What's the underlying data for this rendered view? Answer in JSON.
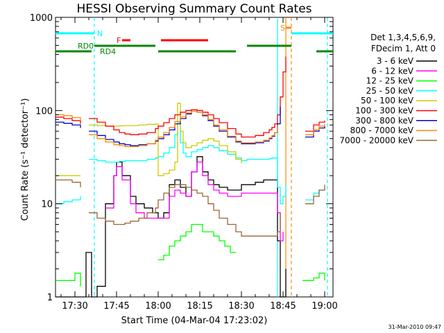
{
  "chart_data": {
    "type": "line",
    "title": "HESSI Observing Summary Count Rates",
    "xlabel": "Start Time (04-Mar-04 17:23:02)",
    "ylabel": "Count Rate (s⁻¹ detector⁻¹)",
    "x_unit": "minutes after 17:00 UT",
    "xlim": [
      23,
      123
    ],
    "ylim": [
      1,
      1000
    ],
    "yscale": "log",
    "x_ticks": [
      {
        "x": 30,
        "label": "17:30"
      },
      {
        "x": 45,
        "label": "17:45"
      },
      {
        "x": 60,
        "label": "18:00"
      },
      {
        "x": 75,
        "label": "18:15"
      },
      {
        "x": 90,
        "label": "18:30"
      },
      {
        "x": 105,
        "label": "18:45"
      },
      {
        "x": 120,
        "label": "19:00"
      }
    ],
    "y_ticks": [
      {
        "y": 1,
        "label": "1"
      },
      {
        "y": 10,
        "label": "10"
      },
      {
        "y": 100,
        "label": "100"
      },
      {
        "y": 1000,
        "label": "1000"
      }
    ],
    "legend": {
      "position": "right",
      "header": [
        "Det 1,3,4,5,6,9,",
        "FDecim 1, Att 0"
      ]
    },
    "series": [
      {
        "name": "3 - 6 keV",
        "color": "#000000",
        "x": [
          23,
          32,
          34,
          36,
          38,
          41,
          44,
          45,
          47,
          50,
          52,
          55,
          58,
          60,
          62,
          64,
          66,
          68,
          70,
          72,
          74,
          76,
          78,
          80,
          82,
          85,
          88,
          90,
          92,
          95,
          98,
          100,
          102,
          103,
          104,
          105,
          106
        ],
        "y": [
          1,
          1,
          3,
          1,
          1.3,
          10,
          20,
          28,
          20,
          12,
          10,
          9,
          8,
          7,
          8,
          16,
          18,
          15,
          12,
          22,
          32,
          22,
          18,
          16,
          15,
          14,
          14,
          16,
          16,
          17,
          18,
          18,
          18,
          4,
          1,
          1,
          2
        ]
      },
      {
        "name": "6 - 12 keV",
        "color": "#ff00ff",
        "x": [
          23,
          32,
          34,
          36,
          38,
          41,
          44,
          45,
          47,
          50,
          52,
          55,
          58,
          60,
          62,
          64,
          66,
          68,
          70,
          72,
          74,
          76,
          78,
          80,
          82,
          85,
          88,
          90,
          92,
          95,
          98,
          100,
          102,
          103,
          104,
          105
        ],
        "y": [
          null,
          null,
          null,
          null,
          null,
          9,
          20,
          25,
          18,
          10,
          8,
          7,
          7,
          7,
          7,
          12,
          14,
          13,
          12,
          22,
          28,
          20,
          16,
          14,
          13,
          12,
          12,
          13,
          13,
          13,
          13,
          13,
          13,
          8,
          4,
          5
        ]
      },
      {
        "name": "12 - 25 keV",
        "color": "#00ff00",
        "x": [
          23,
          30,
          32,
          33,
          35,
          38,
          40,
          42,
          45,
          48,
          50,
          53,
          55,
          58,
          60,
          62,
          64,
          66,
          68,
          70,
          72,
          74,
          76,
          78,
          80,
          82,
          84,
          86,
          88,
          90,
          92,
          95,
          98,
          100,
          102,
          103,
          104,
          105,
          106,
          108,
          110,
          112,
          116,
          118,
          120
        ],
        "y": [
          1.5,
          1.8,
          1.3,
          null,
          null,
          null,
          null,
          null,
          null,
          null,
          null,
          null,
          null,
          null,
          2.5,
          2.8,
          3.5,
          4,
          4.5,
          5,
          6,
          6,
          5,
          5,
          4.5,
          4,
          3.5,
          3,
          3,
          null,
          null,
          null,
          null,
          null,
          null,
          null,
          null,
          null,
          null,
          null,
          null,
          1.5,
          1.6,
          1.8,
          1.5
        ]
      },
      {
        "name": "25 - 50 keV",
        "color": "#00ffff",
        "x": [
          23,
          26,
          29,
          32,
          33,
          35,
          38,
          41,
          44,
          46,
          48,
          50,
          53,
          56,
          59,
          60,
          62,
          64,
          66,
          67,
          68,
          69,
          70,
          72,
          74,
          76,
          78,
          80,
          82,
          85,
          88,
          90,
          92,
          95,
          98,
          100,
          101,
          102,
          103,
          104,
          105,
          106,
          108,
          110,
          112,
          113,
          116,
          118,
          120
        ],
        "y": [
          10,
          10.5,
          11,
          12,
          null,
          30,
          29,
          28,
          28,
          28.5,
          29,
          29,
          29,
          30,
          31,
          32,
          35,
          40,
          55,
          75,
          45,
          35,
          32,
          36,
          38,
          40,
          42,
          40,
          37,
          34,
          31,
          29,
          30,
          30,
          30,
          30.5,
          31,
          31,
          15,
          10,
          12,
          16,
          null,
          null,
          null,
          11,
          13,
          14,
          15
        ]
      },
      {
        "name": "50 - 100 keV",
        "color": "#cccc00",
        "x": [
          23,
          26,
          29,
          32,
          33,
          35,
          38,
          41,
          44,
          46,
          48,
          50,
          53,
          56,
          59,
          60,
          62,
          64,
          66,
          67,
          68,
          69,
          70,
          72,
          74,
          76,
          78,
          80,
          82,
          85,
          88,
          90,
          92,
          95,
          98,
          100,
          101,
          102,
          103,
          104,
          105,
          106,
          108,
          110,
          112,
          113,
          116,
          118,
          120
        ],
        "y": [
          20,
          20,
          20,
          20,
          null,
          70,
          69,
          68,
          68,
          68.5,
          69,
          69,
          70,
          71,
          72,
          20,
          21,
          23,
          28,
          120,
          60,
          45,
          40,
          42,
          45,
          48,
          50,
          47,
          42,
          36,
          30,
          27,
          null,
          null,
          null,
          null,
          null,
          null,
          null,
          null,
          null,
          null,
          null,
          null,
          null,
          null,
          null,
          null,
          null
        ]
      },
      {
        "name": "100 - 300 keV",
        "color": "#ff0000",
        "x": [
          23,
          26,
          29,
          32,
          33,
          35,
          38,
          41,
          44,
          46,
          48,
          50,
          53,
          56,
          59,
          60,
          62,
          64,
          66,
          68,
          70,
          72,
          74,
          76,
          78,
          80,
          82,
          85,
          88,
          90,
          92,
          95,
          98,
          100,
          101,
          102,
          103,
          104,
          105,
          106,
          108,
          110,
          112,
          113,
          116,
          118,
          120
        ],
        "y": [
          85,
          82,
          78,
          72,
          null,
          82,
          75,
          68,
          62,
          58,
          56,
          55,
          56,
          58,
          64,
          68,
          74,
          82,
          90,
          96,
          100,
          102,
          100,
          96,
          90,
          82,
          74,
          64,
          56,
          52,
          52,
          54,
          58,
          62,
          66,
          72,
          90,
          140,
          260,
          380,
          null,
          null,
          null,
          60,
          70,
          75,
          78
        ]
      },
      {
        "name": "300 - 800 keV",
        "color": "#0000cc",
        "x": [
          23,
          26,
          29,
          32,
          33,
          35,
          38,
          41,
          44,
          46,
          48,
          50,
          53,
          56,
          59,
          60,
          62,
          64,
          66,
          68,
          70,
          72,
          74,
          76,
          78,
          80,
          82,
          85,
          88,
          90,
          92,
          95,
          98,
          100,
          101,
          102,
          103,
          104,
          105,
          106,
          108,
          110,
          112,
          113,
          116,
          118,
          120
        ],
        "y": [
          75,
          73,
          70,
          65,
          null,
          60,
          54,
          49,
          46,
          44,
          43,
          42,
          43,
          44,
          47,
          50,
          55,
          62,
          72,
          82,
          92,
          98,
          96,
          88,
          78,
          68,
          60,
          52,
          46,
          44,
          44,
          45,
          47,
          50,
          53,
          58,
          72,
          110,
          null,
          null,
          null,
          null,
          null,
          52,
          60,
          65,
          68
        ]
      },
      {
        "name": "800 - 7000 keV",
        "color": "#ff8800",
        "x": [
          23,
          26,
          29,
          32,
          33,
          35,
          38,
          41,
          44,
          46,
          48,
          50,
          53,
          56,
          59,
          60,
          62,
          64,
          66,
          68,
          70,
          72,
          74,
          76,
          78,
          80,
          82,
          85,
          88,
          90,
          92,
          95,
          98,
          100,
          101,
          102,
          103,
          104,
          105,
          106,
          108,
          110,
          112,
          113,
          116,
          118,
          120
        ],
        "y": [
          90,
          88,
          84,
          78,
          null,
          55,
          50,
          46,
          43,
          42,
          41,
          41,
          42,
          44,
          48,
          52,
          58,
          66,
          76,
          86,
          94,
          98,
          96,
          90,
          80,
          70,
          62,
          53,
          47,
          45,
          45,
          46,
          48,
          51,
          54,
          58,
          70,
          null,
          null,
          null,
          null,
          null,
          null,
          55,
          62,
          68,
          72
        ]
      },
      {
        "name": "7000 - 20000 keV",
        "color": "#996633",
        "x": [
          23,
          26,
          29,
          32,
          33,
          35,
          38,
          41,
          44,
          46,
          48,
          50,
          53,
          56,
          59,
          60,
          62,
          64,
          66,
          68,
          70,
          72,
          74,
          76,
          78,
          80,
          82,
          85,
          88,
          90,
          92,
          95,
          98,
          100,
          101,
          102,
          103,
          104,
          105,
          106,
          108,
          110,
          112,
          113,
          116,
          118,
          120
        ],
        "y": [
          18,
          18,
          17,
          15,
          null,
          8,
          7,
          6.5,
          6,
          6,
          6.2,
          6.5,
          7,
          8,
          9,
          11,
          13,
          15,
          16,
          16,
          15,
          14,
          13,
          12,
          10,
          8.5,
          7,
          6,
          5,
          4.5,
          4.5,
          4.5,
          4.5,
          4.5,
          4.5,
          4.5,
          5,
          8,
          null,
          null,
          null,
          null,
          null,
          10,
          12,
          14,
          16
        ]
      }
    ],
    "bars": [
      {
        "label": "N",
        "color": "#00ffff",
        "segments": [
          [
            23,
            37
          ]
        ],
        "label_x": 38
      },
      {
        "label": "F",
        "color": "#ff0000",
        "segments": [
          [
            47,
            50
          ]
        ],
        "label_x": 45
      },
      {
        "label": "",
        "color": "#ff0000",
        "segments": [
          [
            61,
            78
          ]
        ],
        "label_x": null
      },
      {
        "label": "RD0",
        "color": "#008800",
        "segments": [
          [
            37,
            59
          ],
          [
            92,
            108
          ]
        ],
        "label_x": 31
      },
      {
        "label": "RD4",
        "color": "#008800",
        "segments": [
          [
            23,
            36
          ],
          [
            60,
            88
          ],
          [
            117,
            123
          ]
        ],
        "label_x": 39
      },
      {
        "label": "S",
        "color": "#ff8800",
        "segments": [
          [
            106,
            108
          ]
        ],
        "label_x": 104
      },
      {
        "label": "",
        "color": "#00ffff",
        "segments": [
          [
            108,
            123
          ]
        ],
        "label_x": null
      }
    ],
    "vlines": [
      {
        "x": 37,
        "color": "#00ffff",
        "style": "dashed"
      },
      {
        "x": 103,
        "color": "#00ffff",
        "style": "solid"
      },
      {
        "x": 106,
        "color": "#ff8800",
        "style": "solid"
      },
      {
        "x": 108,
        "color": "#ff8800",
        "style": "dashed"
      },
      {
        "x": 121,
        "color": "#00ffff",
        "style": "dashed"
      }
    ],
    "grid": false
  },
  "footer": {
    "timestamp": "31-Mar-2010 09:47"
  }
}
